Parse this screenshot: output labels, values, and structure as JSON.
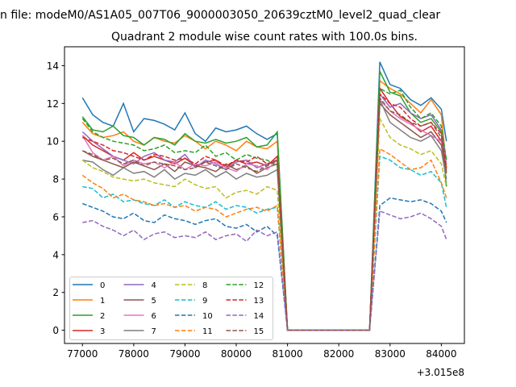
{
  "suptitle": "n file: modeM0/AS1A05_007T06_9000003050_20639cztM0_level2_quad_clear",
  "chart_data": {
    "type": "line",
    "title": "Quadrant 2 module wise count rates with 100.0s bins.",
    "xlabel": "",
    "ylabel": "",
    "x_offset_label": "+3.015e8",
    "xlim": [
      76650,
      84450
    ],
    "ylim": [
      -0.7,
      15
    ],
    "xticks": [
      77000,
      78000,
      79000,
      80000,
      81000,
      82000,
      83000,
      84000
    ],
    "yticks": [
      0,
      2,
      4,
      6,
      8,
      10,
      12,
      14
    ],
    "legend_placement": "lower-left",
    "legend_columns": 4,
    "x": [
      77000,
      77200,
      77400,
      77600,
      77800,
      78000,
      78200,
      78400,
      78600,
      78800,
      79000,
      79200,
      79400,
      79600,
      79800,
      80000,
      80200,
      80400,
      80600,
      80800,
      81000,
      82600,
      82800,
      83000,
      83200,
      83400,
      83600,
      83800,
      84000,
      84100
    ],
    "series": [
      {
        "name": "0",
        "color": "#1f77b4",
        "dashed": false,
        "values": [
          12.3,
          11.4,
          11.0,
          10.8,
          12.0,
          10.5,
          11.2,
          11.1,
          10.9,
          10.6,
          11.5,
          10.4,
          10.0,
          10.7,
          10.5,
          10.6,
          10.8,
          10.4,
          10.1,
          10.4,
          0,
          0,
          14.2,
          13.0,
          12.8,
          12.2,
          11.9,
          12.3,
          11.7,
          10.0
        ]
      },
      {
        "name": "1",
        "color": "#ff7f0e",
        "dashed": false,
        "values": [
          11.0,
          10.4,
          10.2,
          10.3,
          10.5,
          10.0,
          9.8,
          10.2,
          10.0,
          9.9,
          10.3,
          10.0,
          9.6,
          10.0,
          9.8,
          9.5,
          10.0,
          9.7,
          9.6,
          10.0,
          0,
          0,
          13.2,
          12.8,
          12.5,
          12.0,
          11.5,
          12.2,
          11.4,
          8.6
        ]
      },
      {
        "name": "2",
        "color": "#2ca02c",
        "dashed": false,
        "values": [
          11.3,
          10.6,
          10.5,
          10.8,
          10.3,
          10.2,
          9.8,
          10.2,
          10.1,
          9.8,
          10.4,
          10.0,
          9.9,
          10.1,
          9.9,
          10.0,
          10.2,
          9.7,
          9.8,
          10.5,
          0,
          0,
          13.7,
          12.6,
          12.4,
          11.5,
          11.0,
          11.2,
          10.5,
          7.6
        ]
      },
      {
        "name": "3",
        "color": "#d62728",
        "dashed": false,
        "values": [
          10.3,
          9.8,
          9.5,
          9.2,
          9.0,
          9.4,
          9.0,
          9.2,
          9.0,
          8.8,
          9.1,
          8.7,
          8.9,
          9.0,
          8.6,
          9.0,
          8.8,
          8.9,
          8.7,
          9.2,
          0,
          0,
          12.8,
          12.0,
          11.3,
          11.0,
          10.5,
          10.8,
          10.0,
          8.5
        ]
      },
      {
        "name": "4",
        "color": "#9467bd",
        "dashed": false,
        "values": [
          10.5,
          10.0,
          9.6,
          9.2,
          9.0,
          8.8,
          9.2,
          9.4,
          9.0,
          8.9,
          9.3,
          8.6,
          9.0,
          8.8,
          8.5,
          8.9,
          9.0,
          8.6,
          8.8,
          9.0,
          0,
          0,
          12.5,
          11.8,
          12.0,
          11.5,
          11.2,
          11.4,
          10.6,
          9.0
        ]
      },
      {
        "name": "5",
        "color": "#8c564b",
        "dashed": false,
        "values": [
          9.5,
          9.2,
          9.0,
          8.8,
          8.6,
          8.9,
          8.7,
          8.5,
          8.8,
          8.4,
          8.9,
          8.7,
          8.6,
          8.4,
          8.8,
          8.5,
          8.7,
          8.3,
          8.6,
          8.8,
          0,
          0,
          12.0,
          11.4,
          11.0,
          10.6,
          10.2,
          10.5,
          9.8,
          8.4
        ]
      },
      {
        "name": "6",
        "color": "#e377c2",
        "dashed": false,
        "values": [
          10.3,
          9.4,
          9.0,
          9.2,
          8.7,
          9.0,
          8.8,
          8.9,
          8.6,
          8.9,
          8.5,
          8.8,
          8.7,
          8.9,
          8.6,
          8.4,
          8.8,
          8.7,
          8.5,
          9.0,
          0,
          0,
          12.2,
          11.6,
          11.2,
          10.9,
          10.6,
          10.3,
          10.0,
          8.8
        ]
      },
      {
        "name": "7",
        "color": "#7f7f7f",
        "dashed": false,
        "values": [
          9.0,
          8.9,
          8.5,
          8.2,
          8.6,
          8.3,
          8.4,
          8.1,
          8.5,
          8.0,
          8.3,
          8.2,
          8.5,
          8.1,
          8.4,
          8.0,
          8.3,
          8.1,
          8.2,
          8.5,
          0,
          0,
          12.2,
          11.0,
          10.6,
          10.2,
          10.0,
          10.3,
          9.5,
          8.0
        ]
      },
      {
        "name": "8",
        "color": "#bcbd22",
        "dashed": true,
        "values": [
          9.0,
          8.6,
          8.4,
          8.1,
          8.0,
          7.9,
          8.0,
          7.8,
          7.7,
          7.6,
          8.0,
          7.7,
          7.5,
          7.6,
          7.0,
          7.3,
          7.4,
          7.2,
          7.6,
          7.4,
          0,
          0,
          11.2,
          10.2,
          9.8,
          9.6,
          9.3,
          9.5,
          8.8,
          7.6
        ]
      },
      {
        "name": "9",
        "color": "#17becf",
        "dashed": true,
        "values": [
          7.6,
          7.5,
          7.0,
          7.2,
          6.8,
          6.9,
          6.7,
          6.6,
          6.9,
          6.5,
          6.8,
          6.6,
          6.5,
          6.8,
          6.4,
          6.6,
          6.5,
          6.2,
          6.4,
          6.5,
          0,
          0,
          9.2,
          9.0,
          8.6,
          8.5,
          8.2,
          8.4,
          7.8,
          6.5
        ]
      },
      {
        "name": "10",
        "color": "#1f77b4",
        "dashed": true,
        "values": [
          6.7,
          6.5,
          6.3,
          6.0,
          5.9,
          6.2,
          5.8,
          5.7,
          6.1,
          5.9,
          5.8,
          5.6,
          5.8,
          5.9,
          5.5,
          5.4,
          5.6,
          5.2,
          5.5,
          5.0,
          0,
          0,
          6.6,
          7.0,
          6.9,
          6.8,
          6.9,
          6.7,
          6.3,
          5.7
        ]
      },
      {
        "name": "11",
        "color": "#ff7f0e",
        "dashed": true,
        "values": [
          8.2,
          7.8,
          7.5,
          7.0,
          7.2,
          6.9,
          6.8,
          6.6,
          6.7,
          6.5,
          6.6,
          6.3,
          6.5,
          6.4,
          6.0,
          6.2,
          6.4,
          6.5,
          6.3,
          6.6,
          0,
          0,
          9.6,
          9.3,
          8.9,
          8.5,
          8.6,
          9.0,
          7.8,
          7.0
        ]
      },
      {
        "name": "12",
        "color": "#2ca02c",
        "dashed": true,
        "values": [
          11.2,
          10.5,
          10.2,
          10.0,
          9.9,
          9.8,
          9.5,
          9.6,
          9.8,
          9.4,
          9.5,
          9.4,
          9.8,
          9.2,
          9.4,
          9.0,
          9.3,
          9.1,
          9.0,
          8.7,
          0,
          0,
          12.8,
          12.5,
          12.7,
          11.8,
          11.2,
          11.5,
          10.8,
          9.0
        ]
      },
      {
        "name": "13",
        "color": "#d62728",
        "dashed": true,
        "values": [
          10.2,
          10.0,
          9.8,
          9.5,
          9.4,
          9.2,
          9.0,
          9.3,
          9.2,
          9.0,
          9.1,
          8.8,
          9.2,
          9.0,
          8.7,
          9.0,
          8.9,
          9.2,
          8.8,
          9.0,
          0,
          0,
          12.5,
          12.0,
          11.8,
          11.2,
          10.8,
          11.0,
          10.4,
          8.6
        ]
      },
      {
        "name": "14",
        "color": "#9467bd",
        "dashed": true,
        "values": [
          5.7,
          5.8,
          5.5,
          5.3,
          5.0,
          5.3,
          4.8,
          5.1,
          5.2,
          4.9,
          5.0,
          4.9,
          5.2,
          4.8,
          5.0,
          5.1,
          4.7,
          5.3,
          5.0,
          5.2,
          0,
          0,
          6.3,
          6.1,
          5.9,
          6.0,
          6.2,
          5.9,
          5.5,
          4.8
        ]
      },
      {
        "name": "15",
        "color": "#8c564b",
        "dashed": true,
        "values": [
          9.5,
          9.3,
          9.0,
          9.1,
          8.8,
          9.0,
          8.7,
          8.9,
          8.8,
          8.7,
          8.5,
          8.6,
          8.9,
          8.7,
          8.5,
          8.8,
          8.6,
          8.4,
          8.7,
          9.0,
          0,
          0,
          12.3,
          11.6,
          11.4,
          11.0,
          10.8,
          11.0,
          10.2,
          8.3
        ]
      }
    ]
  }
}
